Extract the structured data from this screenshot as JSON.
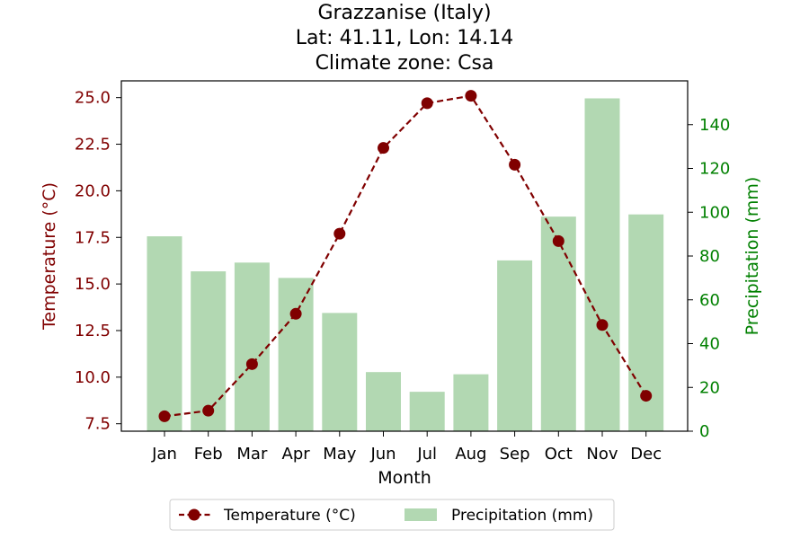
{
  "chart_data": {
    "type": "bar+line",
    "title_lines": [
      "Grazzanise (Italy)",
      "Lat: 41.11, Lon: 14.14",
      "Climate zone: Csa"
    ],
    "xlabel": "Month",
    "ylabel_left": "Temperature (°C)",
    "ylabel_right": "Precipitation (mm)",
    "categories": [
      "Jan",
      "Feb",
      "Mar",
      "Apr",
      "May",
      "Jun",
      "Jul",
      "Aug",
      "Sep",
      "Oct",
      "Nov",
      "Dec"
    ],
    "temperature": {
      "name": "Temperature (°C)",
      "color": "#800000",
      "values": [
        7.9,
        8.2,
        10.7,
        13.4,
        17.7,
        22.3,
        24.7,
        25.1,
        21.4,
        17.3,
        12.8,
        9.0
      ],
      "ylim": [
        7.1,
        25.9
      ],
      "ticks": [
        "7.5",
        "10.0",
        "12.5",
        "15.0",
        "17.5",
        "20.0",
        "22.5",
        "25.0"
      ]
    },
    "precipitation": {
      "name": "Precipitation (mm)",
      "color": "#b2d8b2",
      "label_color": "#008000",
      "values": [
        89,
        73,
        77,
        70,
        54,
        27,
        18,
        26,
        78,
        98,
        152,
        99
      ],
      "ylim": [
        0,
        160
      ],
      "ticks": [
        "0",
        "20",
        "40",
        "60",
        "80",
        "100",
        "120",
        "140"
      ]
    },
    "legend": {
      "placement": "bottom-center",
      "items": [
        "Temperature (°C)",
        "Precipitation (mm)"
      ]
    }
  }
}
